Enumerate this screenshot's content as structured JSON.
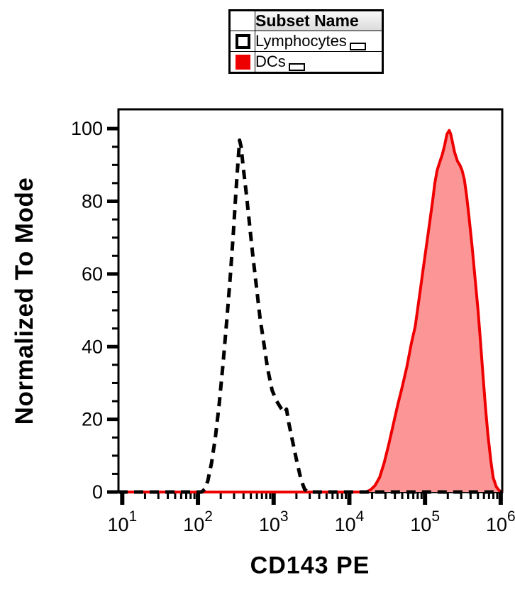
{
  "legend": {
    "header": "Subset Name",
    "rows": [
      {
        "label": "Lymphocytes",
        "swatch": "outline",
        "swatch_color": "#000000"
      },
      {
        "label": "DCs",
        "swatch": "filled",
        "swatch_color": "#ee0000"
      }
    ]
  },
  "chart_data": {
    "type": "area",
    "title": "",
    "xlabel": "CD143 PE",
    "ylabel": "Normalized To Mode",
    "x_scale": "log10",
    "x_tick_base": "10",
    "x_ticks_exponents": [
      1,
      2,
      3,
      4,
      5,
      6
    ],
    "x_range_log": [
      0.95,
      6.02
    ],
    "ylim": [
      0,
      105.3
    ],
    "y_ticks": [
      0,
      20,
      40,
      60,
      80,
      100
    ],
    "y_minor_step": 5,
    "y_minor_max": 95,
    "grid": false,
    "legend_position": "top-center",
    "axis_color": "#000000",
    "series": [
      {
        "name": "Lymphocytes",
        "style": "dashed",
        "color": "#000000",
        "fill": "none",
        "peak": {
          "x": 355,
          "y": 97
        },
        "points_logx_y": [
          [
            0.95,
            0
          ],
          [
            2.05,
            0
          ],
          [
            2.09,
            0.8
          ],
          [
            2.13,
            3
          ],
          [
            2.18,
            8
          ],
          [
            2.23,
            15
          ],
          [
            2.28,
            24
          ],
          [
            2.33,
            35
          ],
          [
            2.38,
            47
          ],
          [
            2.43,
            60
          ],
          [
            2.47,
            72
          ],
          [
            2.5,
            82
          ],
          [
            2.52,
            88
          ],
          [
            2.54,
            94
          ],
          [
            2.55,
            96.8
          ],
          [
            2.57,
            95
          ],
          [
            2.6,
            89
          ],
          [
            2.64,
            82
          ],
          [
            2.68,
            74
          ],
          [
            2.72,
            66
          ],
          [
            2.77,
            57
          ],
          [
            2.82,
            48
          ],
          [
            2.87,
            41
          ],
          [
            2.92,
            34
          ],
          [
            2.98,
            28
          ],
          [
            3.04,
            25
          ],
          [
            3.1,
            23
          ],
          [
            3.14,
            21.8
          ],
          [
            3.17,
            22.8
          ],
          [
            3.2,
            19
          ],
          [
            3.25,
            14
          ],
          [
            3.3,
            9
          ],
          [
            3.36,
            3.5
          ],
          [
            3.41,
            0.7
          ],
          [
            3.46,
            0
          ],
          [
            6.02,
            0
          ]
        ]
      },
      {
        "name": "DCs",
        "style": "solid",
        "color": "#ee0000",
        "fill": "#fc9595",
        "peak": {
          "x": 200000,
          "y": 99.5
        },
        "points_logx_y": [
          [
            0.95,
            0
          ],
          [
            4.22,
            0
          ],
          [
            4.28,
            0.6
          ],
          [
            4.34,
            1.8
          ],
          [
            4.4,
            4
          ],
          [
            4.46,
            8
          ],
          [
            4.52,
            13
          ],
          [
            4.58,
            18.5
          ],
          [
            4.64,
            24
          ],
          [
            4.7,
            29
          ],
          [
            4.76,
            34.5
          ],
          [
            4.82,
            41
          ],
          [
            4.87,
            45.5
          ],
          [
            4.9,
            50
          ],
          [
            4.94,
            56
          ],
          [
            4.98,
            62
          ],
          [
            5.02,
            68
          ],
          [
            5.06,
            74
          ],
          [
            5.1,
            80
          ],
          [
            5.13,
            85
          ],
          [
            5.16,
            88.5
          ],
          [
            5.19,
            90.5
          ],
          [
            5.23,
            93
          ],
          [
            5.26,
            95.5
          ],
          [
            5.29,
            98.5
          ],
          [
            5.32,
            99.5
          ],
          [
            5.34,
            98.5
          ],
          [
            5.36,
            96.5
          ],
          [
            5.39,
            93.5
          ],
          [
            5.43,
            91
          ],
          [
            5.46,
            90
          ],
          [
            5.49,
            88.5
          ],
          [
            5.52,
            86
          ],
          [
            5.55,
            81.5
          ],
          [
            5.58,
            76
          ],
          [
            5.62,
            68
          ],
          [
            5.66,
            59
          ],
          [
            5.7,
            50
          ],
          [
            5.73,
            42
          ],
          [
            5.77,
            31
          ],
          [
            5.8,
            23
          ],
          [
            5.83,
            16
          ],
          [
            5.87,
            8.5
          ],
          [
            5.9,
            4
          ],
          [
            5.94,
            1.5
          ],
          [
            5.98,
            0.4
          ],
          [
            6.02,
            0
          ]
        ]
      }
    ]
  }
}
